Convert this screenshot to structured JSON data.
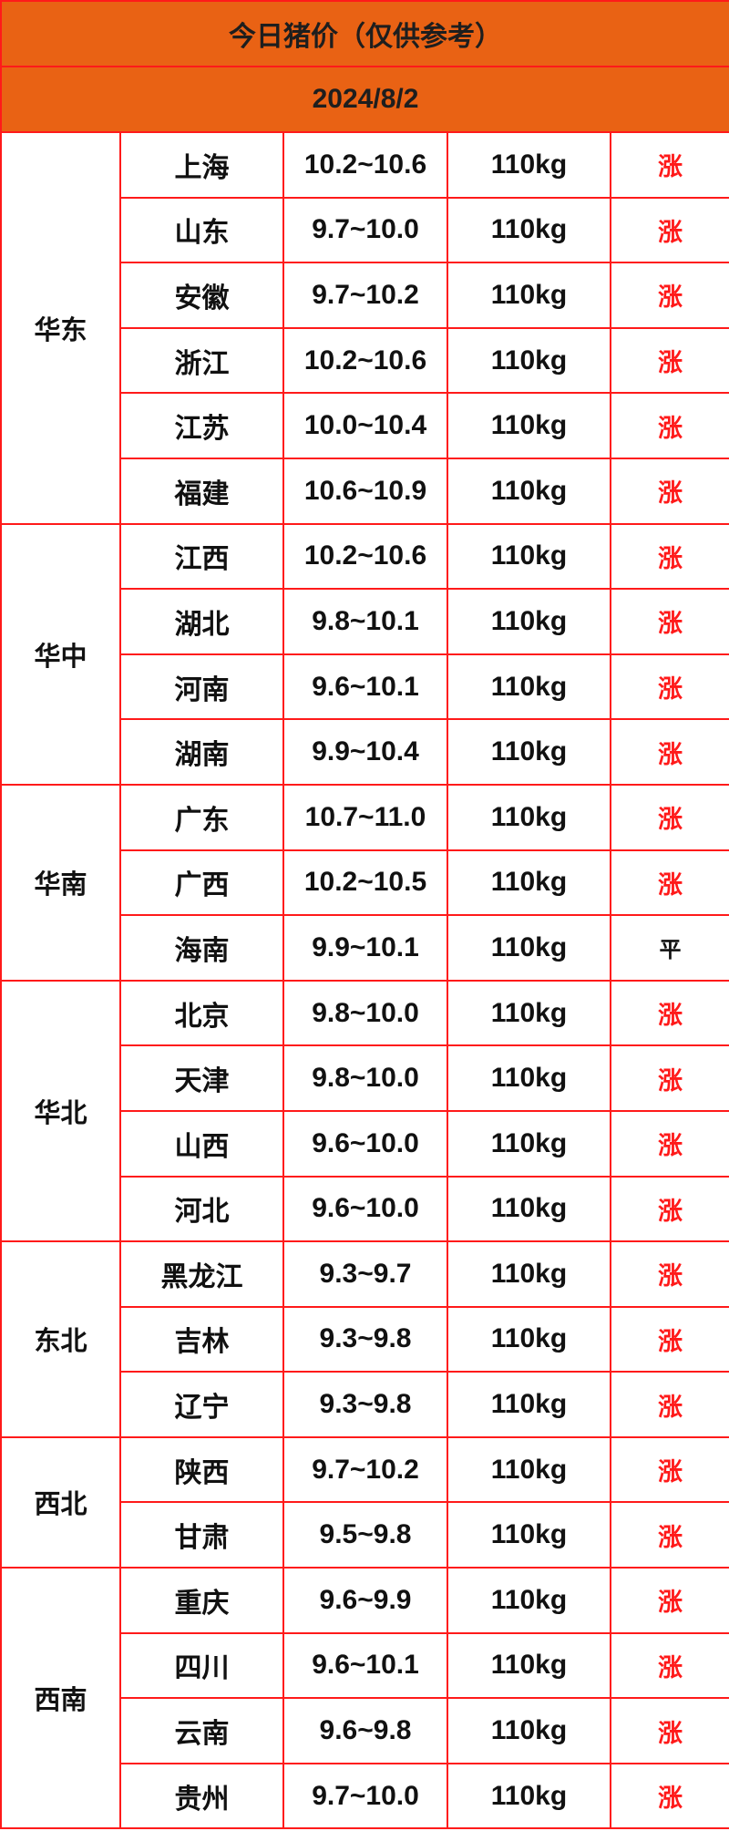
{
  "title": "今日猪价（仅供参考）",
  "date": "2024/8/2",
  "colors": {
    "header_bg": "#e96214",
    "border": "#ff1a1a",
    "up": "#ff1a1a"
  },
  "regions": [
    {
      "name": "华东",
      "rows": [
        {
          "province": "上海",
          "price": "10.2~10.6",
          "weight": "110kg",
          "trend": "涨"
        },
        {
          "province": "山东",
          "price": "9.7~10.0",
          "weight": "110kg",
          "trend": "涨"
        },
        {
          "province": "安徽",
          "price": "9.7~10.2",
          "weight": "110kg",
          "trend": "涨"
        },
        {
          "province": "浙江",
          "price": "10.2~10.6",
          "weight": "110kg",
          "trend": "涨"
        },
        {
          "province": "江苏",
          "price": "10.0~10.4",
          "weight": "110kg",
          "trend": "涨"
        },
        {
          "province": "福建",
          "price": "10.6~10.9",
          "weight": "110kg",
          "trend": "涨"
        }
      ]
    },
    {
      "name": "华中",
      "rows": [
        {
          "province": "江西",
          "price": "10.2~10.6",
          "weight": "110kg",
          "trend": "涨"
        },
        {
          "province": "湖北",
          "price": "9.8~10.1",
          "weight": "110kg",
          "trend": "涨"
        },
        {
          "province": "河南",
          "price": "9.6~10.1",
          "weight": "110kg",
          "trend": "涨"
        },
        {
          "province": "湖南",
          "price": "9.9~10.4",
          "weight": "110kg",
          "trend": "涨"
        }
      ]
    },
    {
      "name": "华南",
      "rows": [
        {
          "province": "广东",
          "price": "10.7~11.0",
          "weight": "110kg",
          "trend": "涨"
        },
        {
          "province": "广西",
          "price": "10.2~10.5",
          "weight": "110kg",
          "trend": "涨"
        },
        {
          "province": "海南",
          "price": "9.9~10.1",
          "weight": "110kg",
          "trend": "平"
        }
      ]
    },
    {
      "name": "华北",
      "rows": [
        {
          "province": "北京",
          "price": "9.8~10.0",
          "weight": "110kg",
          "trend": "涨"
        },
        {
          "province": "天津",
          "price": "9.8~10.0",
          "weight": "110kg",
          "trend": "涨"
        },
        {
          "province": "山西",
          "price": "9.6~10.0",
          "weight": "110kg",
          "trend": "涨"
        },
        {
          "province": "河北",
          "price": "9.6~10.0",
          "weight": "110kg",
          "trend": "涨"
        }
      ]
    },
    {
      "name": "东北",
      "rows": [
        {
          "province": "黑龙江",
          "price": "9.3~9.7",
          "weight": "110kg",
          "trend": "涨"
        },
        {
          "province": "吉林",
          "price": "9.3~9.8",
          "weight": "110kg",
          "trend": "涨"
        },
        {
          "province": "辽宁",
          "price": "9.3~9.8",
          "weight": "110kg",
          "trend": "涨"
        }
      ]
    },
    {
      "name": "西北",
      "rows": [
        {
          "province": "陕西",
          "price": "9.7~10.2",
          "weight": "110kg",
          "trend": "涨"
        },
        {
          "province": "甘肃",
          "price": "9.5~9.8",
          "weight": "110kg",
          "trend": "涨"
        }
      ]
    },
    {
      "name": "西南",
      "rows": [
        {
          "province": "重庆",
          "price": "9.6~9.9",
          "weight": "110kg",
          "trend": "涨"
        },
        {
          "province": "四川",
          "price": "9.6~10.1",
          "weight": "110kg",
          "trend": "涨"
        },
        {
          "province": "云南",
          "price": "9.6~9.8",
          "weight": "110kg",
          "trend": "涨"
        },
        {
          "province": "贵州",
          "price": "9.7~10.0",
          "weight": "110kg",
          "trend": "涨"
        }
      ]
    }
  ]
}
